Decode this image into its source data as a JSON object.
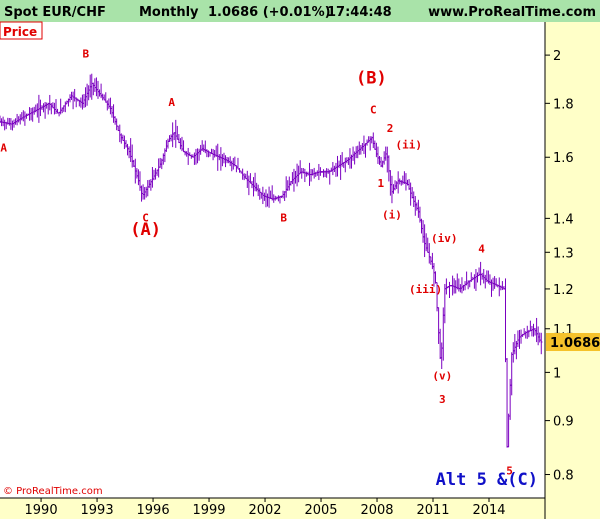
{
  "header": {
    "symbol": "Spot EUR/CHF",
    "period": "Monthly",
    "quote": "1.0686 (+0.01%)",
    "time": "17:44:48",
    "site": "www.ProRealTime.com"
  },
  "price_tag": "Price",
  "last_price_label": "1.0686",
  "copyright": "© ProRealTime.com",
  "alt_label": "Alt 5 &(C)",
  "colors": {
    "bars": "#7a00c0",
    "wave_labels": "#e00000",
    "alt_label": "#1010c8",
    "header_bg": "#a9e3a9",
    "axis_bg": "#ffffc8",
    "last_price_bg": "#f5c22b"
  },
  "chart_data": {
    "type": "ohlc-bar",
    "title": "Spot EUR/CHF",
    "y_scale": "log",
    "ylim": [
      0.76,
      2.15
    ],
    "x_range": [
      1987.8,
      2017.0
    ],
    "x_ticks": [
      "1990",
      "1993",
      "1996",
      "1999",
      "2002",
      "2005",
      "2008",
      "2011",
      "2014"
    ],
    "y_ticks": [
      "2",
      "1.8",
      "1.6",
      "1.4",
      "1.3",
      "1.2",
      "1.1",
      "1",
      "0.9",
      "0.8"
    ],
    "last_value": 1.0686,
    "price_path": [
      [
        1987.8,
        1.73
      ],
      [
        1988.5,
        1.72
      ],
      [
        1989.2,
        1.75
      ],
      [
        1990.0,
        1.78
      ],
      [
        1990.5,
        1.8
      ],
      [
        1991.0,
        1.76
      ],
      [
        1991.7,
        1.83
      ],
      [
        1992.3,
        1.8
      ],
      [
        1992.8,
        1.88
      ],
      [
        1993.3,
        1.83
      ],
      [
        1993.8,
        1.78
      ],
      [
        1994.3,
        1.68
      ],
      [
        1994.8,
        1.62
      ],
      [
        1995.3,
        1.52
      ],
      [
        1995.5,
        1.47
      ],
      [
        1996.0,
        1.52
      ],
      [
        1996.5,
        1.58
      ],
      [
        1996.9,
        1.66
      ],
      [
        1997.2,
        1.69
      ],
      [
        1997.7,
        1.62
      ],
      [
        1998.2,
        1.6
      ],
      [
        1998.7,
        1.63
      ],
      [
        1999.3,
        1.61
      ],
      [
        2000.0,
        1.59
      ],
      [
        2000.5,
        1.57
      ],
      [
        2001.0,
        1.53
      ],
      [
        2001.5,
        1.5
      ],
      [
        2002.0,
        1.47
      ],
      [
        2002.5,
        1.46
      ],
      [
        2003.0,
        1.47
      ],
      [
        2003.5,
        1.52
      ],
      [
        2004.0,
        1.55
      ],
      [
        2004.5,
        1.54
      ],
      [
        2005.0,
        1.55
      ],
      [
        2005.5,
        1.55
      ],
      [
        2006.0,
        1.57
      ],
      [
        2006.5,
        1.59
      ],
      [
        2007.0,
        1.62
      ],
      [
        2007.5,
        1.65
      ],
      [
        2007.8,
        1.67
      ],
      [
        2008.0,
        1.62
      ],
      [
        2008.3,
        1.57
      ],
      [
        2008.6,
        1.62
      ],
      [
        2008.85,
        1.48
      ],
      [
        2009.2,
        1.52
      ],
      [
        2009.7,
        1.51
      ],
      [
        2010.0,
        1.46
      ],
      [
        2010.3,
        1.42
      ],
      [
        2010.6,
        1.33
      ],
      [
        2011.0,
        1.27
      ],
      [
        2011.2,
        1.23
      ],
      [
        2011.5,
        1.01
      ],
      [
        2011.7,
        1.2
      ],
      [
        2012.0,
        1.21
      ],
      [
        2012.5,
        1.2
      ],
      [
        2013.0,
        1.22
      ],
      [
        2013.6,
        1.24
      ],
      [
        2014.0,
        1.22
      ],
      [
        2014.5,
        1.21
      ],
      [
        2014.9,
        1.2
      ],
      [
        2015.05,
        0.85
      ],
      [
        2015.3,
        1.04
      ],
      [
        2015.7,
        1.08
      ],
      [
        2016.0,
        1.09
      ],
      [
        2016.5,
        1.1
      ],
      [
        2016.85,
        1.0686
      ]
    ],
    "wave_labels": [
      {
        "text": "A",
        "x": 1988.0,
        "y": 1.62,
        "size": "small"
      },
      {
        "text": "B",
        "x": 1992.4,
        "y": 1.99,
        "size": "small"
      },
      {
        "text": "A",
        "x": 1997.0,
        "y": 1.79,
        "size": "small"
      },
      {
        "text": "C",
        "x": 1995.6,
        "y": 1.39,
        "size": "small"
      },
      {
        "text": "(A)",
        "x": 1995.6,
        "y": 1.35,
        "size": "large"
      },
      {
        "text": "B",
        "x": 2003.0,
        "y": 1.39,
        "size": "small"
      },
      {
        "text": "(B)",
        "x": 2007.7,
        "y": 1.88,
        "size": "large"
      },
      {
        "text": "C",
        "x": 2007.8,
        "y": 1.76,
        "size": "small"
      },
      {
        "text": "2",
        "x": 2008.7,
        "y": 1.69,
        "size": "small"
      },
      {
        "text": "(ii)",
        "x": 2009.7,
        "y": 1.63,
        "size": "small"
      },
      {
        "text": "1",
        "x": 2008.2,
        "y": 1.5,
        "size": "small"
      },
      {
        "text": "(i)",
        "x": 2008.8,
        "y": 1.4,
        "size": "small"
      },
      {
        "text": "(iv)",
        "x": 2011.6,
        "y": 1.33,
        "size": "small"
      },
      {
        "text": "4",
        "x": 2013.6,
        "y": 1.3,
        "size": "small"
      },
      {
        "text": "(iii)",
        "x": 2010.6,
        "y": 1.19,
        "size": "small"
      },
      {
        "text": "(v)",
        "x": 2011.5,
        "y": 0.985,
        "size": "small"
      },
      {
        "text": "3",
        "x": 2011.5,
        "y": 0.935,
        "size": "small"
      },
      {
        "text": "5",
        "x": 2015.1,
        "y": 0.8,
        "size": "small"
      }
    ]
  }
}
